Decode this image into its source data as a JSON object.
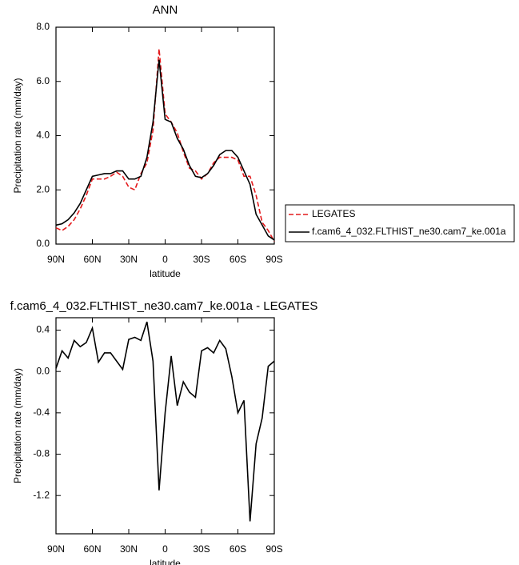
{
  "chart_data": [
    {
      "type": "line",
      "title": "ANN",
      "x_label": "latitude",
      "y_label": "Precipitation rate (mm/day)",
      "x": [
        90,
        85,
        80,
        75,
        70,
        65,
        60,
        55,
        50,
        45,
        40,
        35,
        30,
        25,
        20,
        15,
        10,
        5,
        0,
        -5,
        -10,
        -15,
        -20,
        -25,
        -30,
        -35,
        -40,
        -45,
        -50,
        -55,
        -60,
        -65,
        -70,
        -75,
        -80,
        -85,
        -90
      ],
      "series": [
        {
          "name": "LEGATES",
          "color": "#e41a1c",
          "dashed": true,
          "values": [
            0.6,
            0.5,
            0.65,
            0.9,
            1.3,
            1.8,
            2.4,
            2.4,
            2.4,
            2.5,
            2.65,
            2.5,
            2.1,
            2.0,
            2.6,
            3.0,
            4.2,
            7.2,
            4.8,
            4.5,
            4.1,
            3.4,
            2.8,
            2.7,
            2.4,
            2.6,
            3.0,
            3.2,
            3.2,
            3.2,
            3.1,
            2.5,
            2.5,
            1.8,
            0.8,
            0.5,
            0.1
          ]
        },
        {
          "name": "f.cam6_4_032.FLTHIST_ne30.cam7_ke.001a",
          "color": "#000000",
          "dashed": false,
          "values": [
            0.7,
            0.75,
            0.9,
            1.15,
            1.5,
            2.0,
            2.5,
            2.55,
            2.6,
            2.6,
            2.7,
            2.7,
            2.4,
            2.4,
            2.5,
            3.2,
            4.5,
            6.8,
            4.6,
            4.5,
            3.9,
            3.5,
            2.9,
            2.5,
            2.45,
            2.6,
            2.9,
            3.3,
            3.45,
            3.45,
            3.2,
            2.7,
            2.2,
            1.1,
            0.7,
            0.3,
            0.15
          ]
        }
      ],
      "xlim": [
        90,
        -90
      ],
      "xticks": [
        {
          "value": 90,
          "label": "90N"
        },
        {
          "value": 60,
          "label": "60N"
        },
        {
          "value": 30,
          "label": "30N"
        },
        0,
        {
          "value": -30,
          "label": "30S"
        },
        {
          "value": -60,
          "label": "60S"
        },
        {
          "value": -90,
          "label": "90S"
        }
      ],
      "ylim": [
        0,
        8
      ],
      "yticks": [
        {
          "value": 0,
          "label": "0.0"
        },
        {
          "value": 2,
          "label": "2.0"
        },
        {
          "value": 4,
          "label": "4.0"
        },
        {
          "value": 6,
          "label": "6.0"
        },
        {
          "value": 8,
          "label": "8.0"
        }
      ],
      "legend": "right"
    },
    {
      "type": "line",
      "title": "f.cam6_4_032.FLTHIST_ne30.cam7_ke.001a - LEGATES",
      "x_label": "latitude",
      "y_label": "Precipitation rate (mm/day)",
      "x": [
        90,
        85,
        80,
        75,
        70,
        65,
        60,
        55,
        50,
        45,
        40,
        35,
        30,
        25,
        20,
        15,
        10,
        5,
        0,
        -5,
        -10,
        -15,
        -20,
        -25,
        -30,
        -35,
        -40,
        -45,
        -50,
        -55,
        -60,
        -65,
        -70,
        -75,
        -80,
        -85,
        -90
      ],
      "series": [
        {
          "color": "#000000",
          "dashed": false,
          "values": [
            0.03,
            0.2,
            0.13,
            0.3,
            0.24,
            0.28,
            0.42,
            0.09,
            0.18,
            0.18,
            0.1,
            0.02,
            0.31,
            0.33,
            0.3,
            0.48,
            0.1,
            -1.15,
            -0.4,
            0.15,
            -0.33,
            -0.1,
            -0.2,
            -0.25,
            0.2,
            0.23,
            0.18,
            0.3,
            0.22,
            -0.05,
            -0.4,
            -0.28,
            -1.45,
            -0.7,
            -0.45,
            0.05,
            0.1
          ]
        }
      ],
      "xlim": [
        90,
        -90
      ],
      "xticks": [
        {
          "value": 90,
          "label": "90N"
        },
        {
          "value": 60,
          "label": "60N"
        },
        {
          "value": 30,
          "label": "30N"
        },
        0,
        {
          "value": -30,
          "label": "30S"
        },
        {
          "value": -60,
          "label": "60S"
        },
        {
          "value": -90,
          "label": "90S"
        }
      ],
      "ylim": [
        -1.57,
        0.52
      ],
      "yticks": [
        -1.2,
        -0.8,
        -0.4,
        {
          "value": 0,
          "label": "0.0"
        },
        0.4
      ]
    }
  ]
}
